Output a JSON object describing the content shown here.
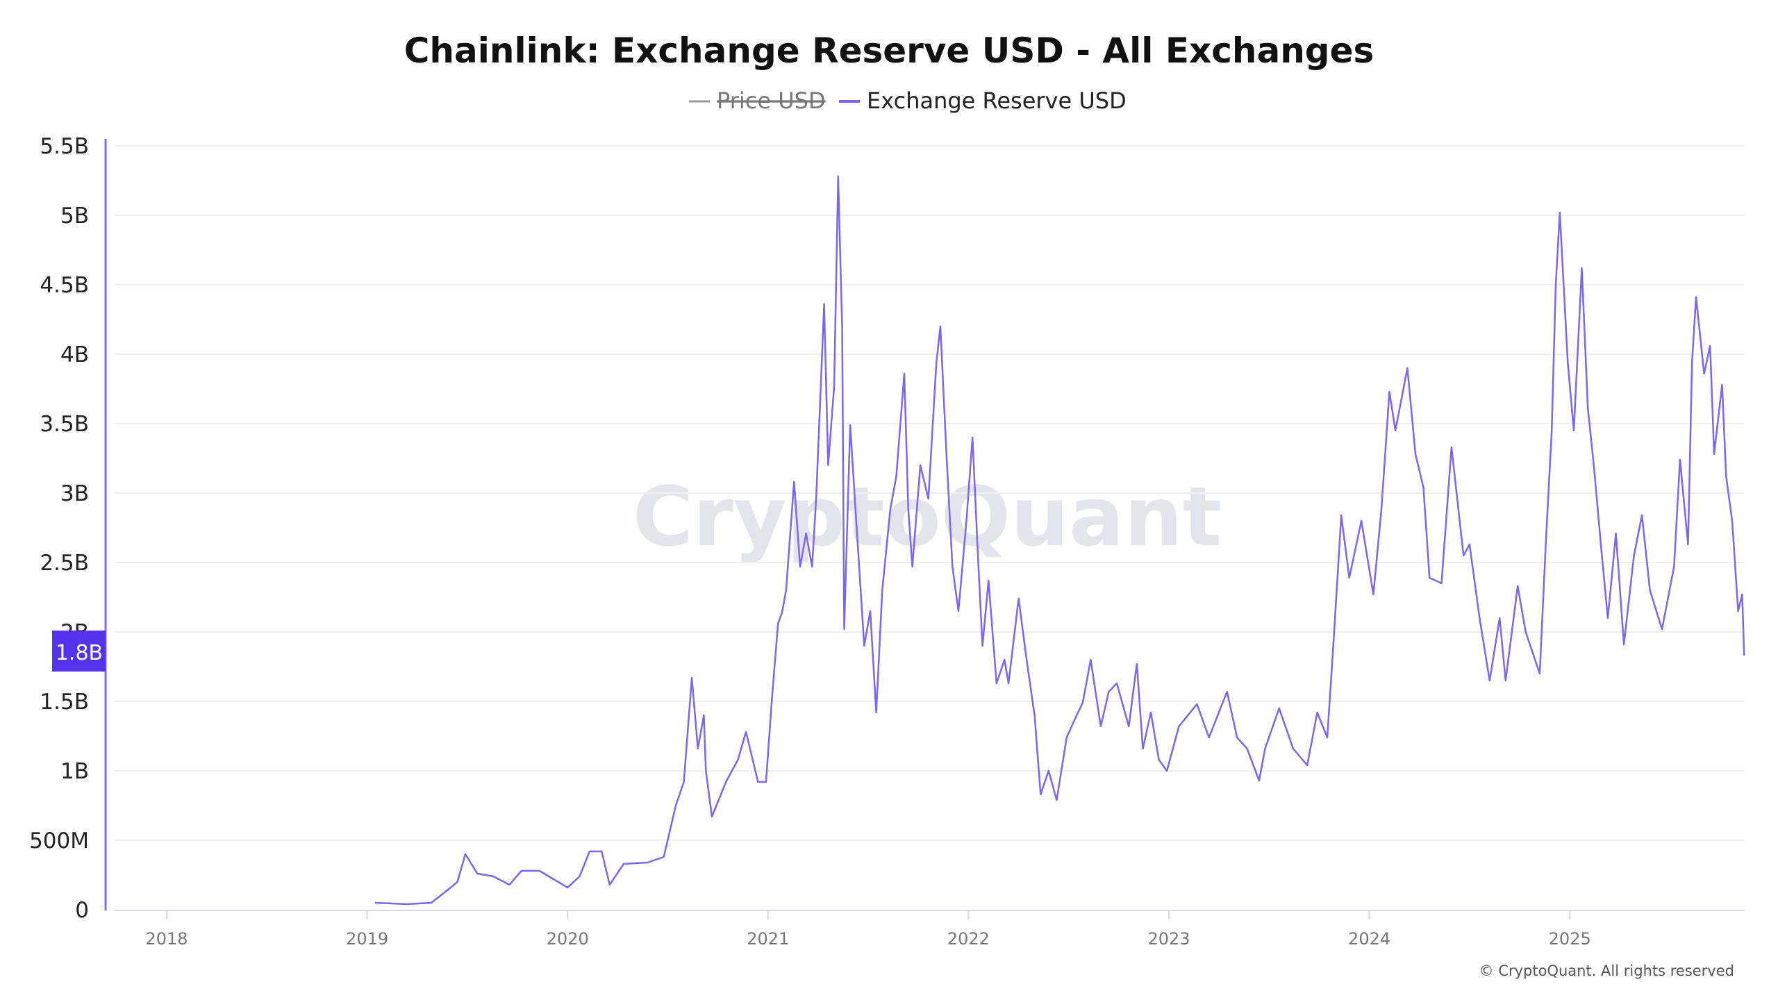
{
  "chart_data": {
    "type": "line",
    "title": "Chainlink: Exchange Reserve USD - All Exchanges",
    "legend": [
      {
        "name": "Price USD",
        "color": "#999999",
        "hidden": true
      },
      {
        "name": "Exchange Reserve USD",
        "color": "#7b68ee",
        "hidden": false
      }
    ],
    "legend_position": "top-center",
    "x_ticks": [
      "2018",
      "2019",
      "2020",
      "2021",
      "2022",
      "2023",
      "2024",
      "2025"
    ],
    "xlim": [
      2017.7,
      2025.88
    ],
    "y_ticks": [
      {
        "v": 0,
        "label": "0"
      },
      {
        "v": 0.5,
        "label": "500M"
      },
      {
        "v": 1,
        "label": "1B"
      },
      {
        "v": 1.5,
        "label": "1.5B"
      },
      {
        "v": 2,
        "label": "2B"
      },
      {
        "v": 2.5,
        "label": "2.5B"
      },
      {
        "v": 3,
        "label": "3B"
      },
      {
        "v": 3.5,
        "label": "3.5B"
      },
      {
        "v": 4,
        "label": "4B"
      },
      {
        "v": 4.5,
        "label": "4.5B"
      },
      {
        "v": 5,
        "label": "5B"
      },
      {
        "v": 5.5,
        "label": "5.5B"
      }
    ],
    "ylim": [
      0,
      5.5
    ],
    "y_unit": "billion USD",
    "grid": true,
    "current_value_label": "1.8B",
    "series": [
      {
        "name": "Exchange Reserve USD",
        "color": "#7b68ee",
        "x": [
          2019.04,
          2019.2,
          2019.32,
          2019.4,
          2019.45,
          2019.49,
          2019.55,
          2019.63,
          2019.71,
          2019.77,
          2019.86,
          2019.93,
          2020.0,
          2020.06,
          2020.11,
          2020.17,
          2020.21,
          2020.28,
          2020.4,
          2020.48,
          2020.54,
          2020.58,
          2020.62,
          2020.65,
          2020.68,
          2020.69,
          2020.72,
          2020.79,
          2020.85,
          2020.89,
          2020.95,
          2020.99,
          2021.02,
          2021.05,
          2021.07,
          2021.09,
          2021.13,
          2021.16,
          2021.19,
          2021.22,
          2021.24,
          2021.28,
          2021.3,
          2021.33,
          2021.35,
          2021.37,
          2021.38,
          2021.41,
          2021.44,
          2021.48,
          2021.51,
          2021.54,
          2021.57,
          2021.61,
          2021.64,
          2021.68,
          2021.7,
          2021.72,
          2021.76,
          2021.8,
          2021.84,
          2021.86,
          2021.89,
          2021.92,
          2021.95,
          2021.99,
          2022.02,
          2022.05,
          2022.07,
          2022.1,
          2022.14,
          2022.18,
          2022.2,
          2022.25,
          2022.29,
          2022.33,
          2022.36,
          2022.4,
          2022.44,
          2022.49,
          2022.54,
          2022.57,
          2022.61,
          2022.66,
          2022.7,
          2022.74,
          2022.8,
          2022.84,
          2022.87,
          2022.91,
          2022.95,
          2022.99,
          2023.05,
          2023.14,
          2023.2,
          2023.29,
          2023.34,
          2023.39,
          2023.45,
          2023.48,
          2023.55,
          2023.62,
          2023.69,
          2023.74,
          2023.79,
          2023.82,
          2023.86,
          2023.9,
          2023.96,
          2024.02,
          2024.06,
          2024.1,
          2024.13,
          2024.19,
          2024.23,
          2024.27,
          2024.3,
          2024.36,
          2024.41,
          2024.47,
          2024.5,
          2024.55,
          2024.6,
          2024.65,
          2024.68,
          2024.74,
          2024.78,
          2024.85,
          2024.88,
          2024.91,
          2024.93,
          2024.95,
          2024.99,
          2025.02,
          2025.06,
          2025.09,
          2025.12,
          2025.16,
          2025.19,
          2025.23,
          2025.27,
          2025.32,
          2025.36,
          2025.4,
          2025.46,
          2025.52,
          2025.55,
          2025.59,
          2025.61,
          2025.63,
          2025.67,
          2025.7,
          2025.72,
          2025.76,
          2025.78,
          2025.81,
          2025.84,
          2025.86,
          2025.87
        ],
        "y": [
          0.05,
          0.04,
          0.05,
          0.14,
          0.2,
          0.4,
          0.26,
          0.24,
          0.18,
          0.28,
          0.28,
          0.22,
          0.16,
          0.24,
          0.42,
          0.42,
          0.18,
          0.33,
          0.34,
          0.38,
          0.75,
          0.92,
          1.67,
          1.16,
          1.4,
          1.0,
          0.67,
          0.92,
          1.08,
          1.28,
          0.92,
          0.92,
          1.53,
          2.06,
          2.14,
          2.3,
          3.08,
          2.47,
          2.71,
          2.47,
          2.96,
          4.36,
          3.2,
          3.77,
          5.28,
          4.18,
          2.02,
          3.49,
          2.8,
          1.9,
          2.15,
          1.42,
          2.3,
          2.88,
          3.12,
          3.86,
          2.88,
          2.47,
          3.2,
          2.96,
          3.94,
          4.2,
          3.28,
          2.47,
          2.15,
          2.8,
          3.4,
          2.47,
          1.9,
          2.37,
          1.63,
          1.8,
          1.63,
          2.24,
          1.8,
          1.4,
          0.83,
          1.0,
          0.79,
          1.24,
          1.4,
          1.49,
          1.8,
          1.32,
          1.57,
          1.63,
          1.32,
          1.77,
          1.16,
          1.42,
          1.08,
          1.0,
          1.32,
          1.48,
          1.24,
          1.57,
          1.24,
          1.16,
          0.93,
          1.16,
          1.45,
          1.16,
          1.04,
          1.42,
          1.24,
          1.9,
          2.84,
          2.39,
          2.8,
          2.27,
          2.88,
          3.73,
          3.45,
          3.9,
          3.28,
          3.04,
          2.39,
          2.35,
          3.33,
          2.55,
          2.63,
          2.1,
          1.65,
          2.1,
          1.65,
          2.33,
          2.0,
          1.7,
          2.63,
          3.45,
          4.5,
          5.02,
          3.94,
          3.45,
          4.62,
          3.61,
          3.2,
          2.55,
          2.1,
          2.71,
          1.91,
          2.55,
          2.84,
          2.3,
          2.02,
          2.47,
          3.24,
          2.63,
          3.94,
          4.41,
          3.86,
          4.06,
          3.28,
          3.78,
          3.12,
          2.8,
          2.15,
          2.27,
          1.83
        ]
      }
    ],
    "watermark": "CryptoQuant",
    "copyright": "© CryptoQuant. All rights reserved"
  }
}
